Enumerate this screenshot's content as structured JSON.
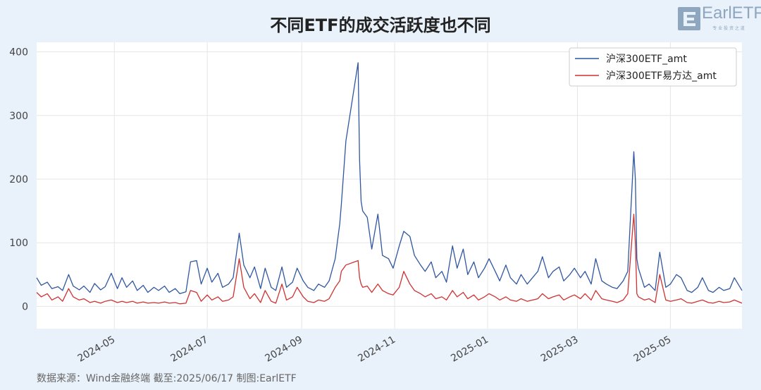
{
  "title": "不同ETF的成交活跃度也不同",
  "logo": {
    "text": "EarlETF",
    "subtitle": "专 业 投 资 之 道"
  },
  "source_note": "数据来源：Wind金融终端 截至:2025/06/17 制图:EarlETF",
  "colors": {
    "background": "#e9f1fa",
    "plot_bg": "#ffffff",
    "series_1": "#2f56a0",
    "series_2": "#cf3131"
  },
  "chart_data": {
    "type": "line",
    "title": "不同ETF的成交活跃度也不同",
    "xlabel": "",
    "ylabel": "",
    "xlim": [
      "2024-03-11",
      "2025-06-17"
    ],
    "ylim": [
      -35,
      415
    ],
    "y_ticks": [
      0,
      100,
      200,
      300,
      400
    ],
    "x_ticks": [
      "2024-05",
      "2024-07",
      "2024-09",
      "2024-11",
      "2025-01",
      "2025-03",
      "2025-05"
    ],
    "grid": true,
    "legend_position": "top-right",
    "series": [
      {
        "name": "沪深300ETF_amt",
        "points": [
          [
            "2024-03-11",
            45
          ],
          [
            "2024-03-14",
            33
          ],
          [
            "2024-03-18",
            38
          ],
          [
            "2024-03-21",
            28
          ],
          [
            "2024-03-25",
            31
          ],
          [
            "2024-03-28",
            25
          ],
          [
            "2024-04-01",
            50
          ],
          [
            "2024-04-04",
            32
          ],
          [
            "2024-04-08",
            26
          ],
          [
            "2024-04-11",
            32
          ],
          [
            "2024-04-15",
            22
          ],
          [
            "2024-04-18",
            36
          ],
          [
            "2024-04-22",
            26
          ],
          [
            "2024-04-25",
            31
          ],
          [
            "2024-04-29",
            52
          ],
          [
            "2024-05-03",
            28
          ],
          [
            "2024-05-06",
            45
          ],
          [
            "2024-05-09",
            30
          ],
          [
            "2024-05-13",
            40
          ],
          [
            "2024-05-16",
            25
          ],
          [
            "2024-05-20",
            33
          ],
          [
            "2024-05-23",
            22
          ],
          [
            "2024-05-27",
            30
          ],
          [
            "2024-05-30",
            25
          ],
          [
            "2024-06-03",
            32
          ],
          [
            "2024-06-06",
            22
          ],
          [
            "2024-06-10",
            28
          ],
          [
            "2024-06-13",
            20
          ],
          [
            "2024-06-17",
            23
          ],
          [
            "2024-06-20",
            70
          ],
          [
            "2024-06-24",
            72
          ],
          [
            "2024-06-27",
            35
          ],
          [
            "2024-07-01",
            60
          ],
          [
            "2024-07-04",
            38
          ],
          [
            "2024-07-08",
            52
          ],
          [
            "2024-07-11",
            30
          ],
          [
            "2024-07-15",
            35
          ],
          [
            "2024-07-18",
            45
          ],
          [
            "2024-07-22",
            115
          ],
          [
            "2024-07-25",
            65
          ],
          [
            "2024-07-29",
            45
          ],
          [
            "2024-08-01",
            62
          ],
          [
            "2024-08-05",
            28
          ],
          [
            "2024-08-08",
            60
          ],
          [
            "2024-08-12",
            30
          ],
          [
            "2024-08-15",
            25
          ],
          [
            "2024-08-19",
            62
          ],
          [
            "2024-08-22",
            30
          ],
          [
            "2024-08-26",
            38
          ],
          [
            "2024-08-29",
            60
          ],
          [
            "2024-09-02",
            40
          ],
          [
            "2024-09-05",
            30
          ],
          [
            "2024-09-09",
            25
          ],
          [
            "2024-09-12",
            35
          ],
          [
            "2024-09-16",
            30
          ],
          [
            "2024-09-19",
            40
          ],
          [
            "2024-09-23",
            75
          ],
          [
            "2024-09-26",
            130
          ],
          [
            "2024-09-27",
            160
          ],
          [
            "2024-09-30",
            260
          ],
          [
            "2024-10-08",
            383
          ],
          [
            "2024-10-09",
            230
          ],
          [
            "2024-10-10",
            165
          ],
          [
            "2024-10-11",
            150
          ],
          [
            "2024-10-14",
            140
          ],
          [
            "2024-10-17",
            90
          ],
          [
            "2024-10-21",
            145
          ],
          [
            "2024-10-24",
            80
          ],
          [
            "2024-10-28",
            75
          ],
          [
            "2024-10-31",
            60
          ],
          [
            "2024-11-04",
            95
          ],
          [
            "2024-11-07",
            118
          ],
          [
            "2024-11-11",
            110
          ],
          [
            "2024-11-14",
            80
          ],
          [
            "2024-11-18",
            65
          ],
          [
            "2024-11-21",
            55
          ],
          [
            "2024-11-25",
            70
          ],
          [
            "2024-11-28",
            45
          ],
          [
            "2024-12-02",
            55
          ],
          [
            "2024-12-05",
            38
          ],
          [
            "2024-12-09",
            95
          ],
          [
            "2024-12-12",
            60
          ],
          [
            "2024-12-16",
            90
          ],
          [
            "2024-12-19",
            50
          ],
          [
            "2024-12-23",
            70
          ],
          [
            "2024-12-26",
            45
          ],
          [
            "2024-12-30",
            60
          ],
          [
            "2025-01-02",
            75
          ],
          [
            "2025-01-06",
            55
          ],
          [
            "2025-01-09",
            40
          ],
          [
            "2025-01-13",
            65
          ],
          [
            "2025-01-16",
            45
          ],
          [
            "2025-01-20",
            35
          ],
          [
            "2025-01-23",
            50
          ],
          [
            "2025-01-27",
            35
          ],
          [
            "2025-02-03",
            55
          ],
          [
            "2025-02-06",
            78
          ],
          [
            "2025-02-10",
            45
          ],
          [
            "2025-02-13",
            55
          ],
          [
            "2025-02-17",
            62
          ],
          [
            "2025-02-20",
            40
          ],
          [
            "2025-02-24",
            50
          ],
          [
            "2025-02-27",
            60
          ],
          [
            "2025-03-03",
            45
          ],
          [
            "2025-03-06",
            55
          ],
          [
            "2025-03-10",
            35
          ],
          [
            "2025-03-13",
            75
          ],
          [
            "2025-03-17",
            40
          ],
          [
            "2025-03-20",
            35
          ],
          [
            "2025-03-24",
            30
          ],
          [
            "2025-03-27",
            28
          ],
          [
            "2025-03-31",
            40
          ],
          [
            "2025-04-03",
            55
          ],
          [
            "2025-04-07",
            243
          ],
          [
            "2025-04-08",
            200
          ],
          [
            "2025-04-09",
            75
          ],
          [
            "2025-04-10",
            60
          ],
          [
            "2025-04-14",
            30
          ],
          [
            "2025-04-17",
            35
          ],
          [
            "2025-04-21",
            25
          ],
          [
            "2025-04-24",
            85
          ],
          [
            "2025-04-28",
            30
          ],
          [
            "2025-05-01",
            35
          ],
          [
            "2025-05-05",
            50
          ],
          [
            "2025-05-08",
            45
          ],
          [
            "2025-05-12",
            25
          ],
          [
            "2025-05-15",
            22
          ],
          [
            "2025-05-19",
            30
          ],
          [
            "2025-05-22",
            45
          ],
          [
            "2025-05-26",
            25
          ],
          [
            "2025-05-29",
            22
          ],
          [
            "2025-06-02",
            30
          ],
          [
            "2025-06-05",
            25
          ],
          [
            "2025-06-09",
            28
          ],
          [
            "2025-06-12",
            45
          ],
          [
            "2025-06-17",
            25
          ]
        ]
      },
      {
        "name": "沪深300ETF易方达_amt",
        "points": [
          [
            "2024-03-11",
            22
          ],
          [
            "2024-03-14",
            15
          ],
          [
            "2024-03-18",
            20
          ],
          [
            "2024-03-21",
            10
          ],
          [
            "2024-03-25",
            15
          ],
          [
            "2024-03-28",
            8
          ],
          [
            "2024-04-01",
            28
          ],
          [
            "2024-04-04",
            15
          ],
          [
            "2024-04-08",
            10
          ],
          [
            "2024-04-11",
            12
          ],
          [
            "2024-04-15",
            6
          ],
          [
            "2024-04-18",
            8
          ],
          [
            "2024-04-22",
            5
          ],
          [
            "2024-04-25",
            8
          ],
          [
            "2024-04-29",
            10
          ],
          [
            "2024-05-03",
            6
          ],
          [
            "2024-05-06",
            8
          ],
          [
            "2024-05-09",
            6
          ],
          [
            "2024-05-13",
            8
          ],
          [
            "2024-05-16",
            5
          ],
          [
            "2024-05-20",
            7
          ],
          [
            "2024-05-23",
            5
          ],
          [
            "2024-05-27",
            6
          ],
          [
            "2024-05-30",
            5
          ],
          [
            "2024-06-03",
            7
          ],
          [
            "2024-06-06",
            5
          ],
          [
            "2024-06-10",
            6
          ],
          [
            "2024-06-13",
            4
          ],
          [
            "2024-06-17",
            5
          ],
          [
            "2024-06-20",
            25
          ],
          [
            "2024-06-24",
            22
          ],
          [
            "2024-06-27",
            8
          ],
          [
            "2024-07-01",
            18
          ],
          [
            "2024-07-04",
            10
          ],
          [
            "2024-07-08",
            15
          ],
          [
            "2024-07-11",
            8
          ],
          [
            "2024-07-15",
            10
          ],
          [
            "2024-07-18",
            15
          ],
          [
            "2024-07-22",
            75
          ],
          [
            "2024-07-25",
            30
          ],
          [
            "2024-07-29",
            12
          ],
          [
            "2024-08-01",
            20
          ],
          [
            "2024-08-05",
            6
          ],
          [
            "2024-08-08",
            25
          ],
          [
            "2024-08-12",
            8
          ],
          [
            "2024-08-15",
            5
          ],
          [
            "2024-08-19",
            35
          ],
          [
            "2024-08-22",
            10
          ],
          [
            "2024-08-26",
            15
          ],
          [
            "2024-08-29",
            30
          ],
          [
            "2024-09-02",
            15
          ],
          [
            "2024-09-05",
            8
          ],
          [
            "2024-09-09",
            6
          ],
          [
            "2024-09-12",
            10
          ],
          [
            "2024-09-16",
            8
          ],
          [
            "2024-09-19",
            12
          ],
          [
            "2024-09-23",
            30
          ],
          [
            "2024-09-26",
            40
          ],
          [
            "2024-09-27",
            55
          ],
          [
            "2024-09-30",
            65
          ],
          [
            "2024-10-08",
            72
          ],
          [
            "2024-10-09",
            45
          ],
          [
            "2024-10-10",
            35
          ],
          [
            "2024-10-11",
            30
          ],
          [
            "2024-10-14",
            32
          ],
          [
            "2024-10-17",
            22
          ],
          [
            "2024-10-21",
            35
          ],
          [
            "2024-10-24",
            25
          ],
          [
            "2024-10-28",
            20
          ],
          [
            "2024-10-31",
            18
          ],
          [
            "2024-11-04",
            30
          ],
          [
            "2024-11-07",
            55
          ],
          [
            "2024-11-11",
            35
          ],
          [
            "2024-11-14",
            25
          ],
          [
            "2024-11-18",
            20
          ],
          [
            "2024-11-21",
            15
          ],
          [
            "2024-11-25",
            20
          ],
          [
            "2024-11-28",
            12
          ],
          [
            "2024-12-02",
            15
          ],
          [
            "2024-12-05",
            10
          ],
          [
            "2024-12-09",
            25
          ],
          [
            "2024-12-12",
            15
          ],
          [
            "2024-12-16",
            22
          ],
          [
            "2024-12-19",
            12
          ],
          [
            "2024-12-23",
            18
          ],
          [
            "2024-12-26",
            10
          ],
          [
            "2024-12-30",
            15
          ],
          [
            "2025-01-02",
            20
          ],
          [
            "2025-01-06",
            15
          ],
          [
            "2025-01-09",
            10
          ],
          [
            "2025-01-13",
            15
          ],
          [
            "2025-01-16",
            10
          ],
          [
            "2025-01-20",
            8
          ],
          [
            "2025-01-23",
            12
          ],
          [
            "2025-01-27",
            8
          ],
          [
            "2025-02-03",
            12
          ],
          [
            "2025-02-06",
            20
          ],
          [
            "2025-02-10",
            12
          ],
          [
            "2025-02-13",
            15
          ],
          [
            "2025-02-17",
            18
          ],
          [
            "2025-02-20",
            10
          ],
          [
            "2025-02-24",
            15
          ],
          [
            "2025-02-27",
            18
          ],
          [
            "2025-03-03",
            12
          ],
          [
            "2025-03-06",
            20
          ],
          [
            "2025-03-10",
            10
          ],
          [
            "2025-03-13",
            25
          ],
          [
            "2025-03-17",
            12
          ],
          [
            "2025-03-20",
            10
          ],
          [
            "2025-03-24",
            8
          ],
          [
            "2025-03-27",
            6
          ],
          [
            "2025-03-31",
            10
          ],
          [
            "2025-04-03",
            20
          ],
          [
            "2025-04-07",
            145
          ],
          [
            "2025-04-08",
            100
          ],
          [
            "2025-04-09",
            20
          ],
          [
            "2025-04-10",
            15
          ],
          [
            "2025-04-14",
            10
          ],
          [
            "2025-04-17",
            12
          ],
          [
            "2025-04-21",
            6
          ],
          [
            "2025-04-24",
            50
          ],
          [
            "2025-04-28",
            10
          ],
          [
            "2025-05-01",
            8
          ],
          [
            "2025-05-05",
            10
          ],
          [
            "2025-05-08",
            12
          ],
          [
            "2025-05-12",
            6
          ],
          [
            "2025-05-15",
            5
          ],
          [
            "2025-05-19",
            8
          ],
          [
            "2025-05-22",
            10
          ],
          [
            "2025-05-26",
            6
          ],
          [
            "2025-05-29",
            5
          ],
          [
            "2025-06-02",
            8
          ],
          [
            "2025-06-05",
            6
          ],
          [
            "2025-06-09",
            7
          ],
          [
            "2025-06-12",
            10
          ],
          [
            "2025-06-17",
            5
          ]
        ]
      }
    ]
  }
}
